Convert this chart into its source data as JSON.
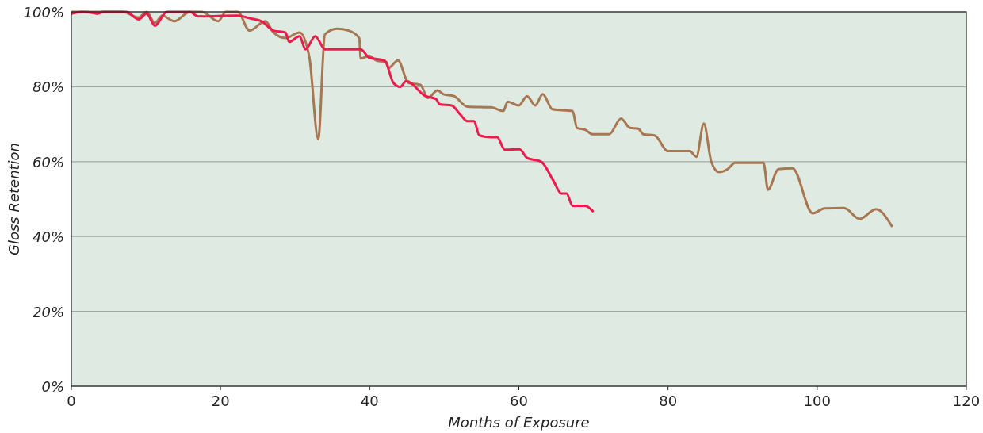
{
  "chart_data": {
    "type": "line",
    "xlabel": "Months of Exposure",
    "ylabel": "Gloss Retention",
    "xlim": [
      0,
      120
    ],
    "xticks": [
      0,
      20,
      40,
      60,
      80,
      100,
      120
    ],
    "ylim": [
      0,
      100
    ],
    "yticks": [
      {
        "value": 0,
        "label": "0%"
      },
      {
        "value": 20,
        "label": "20%"
      },
      {
        "value": 40,
        "label": "40%"
      },
      {
        "value": 60,
        "label": "60%"
      },
      {
        "value": 80,
        "label": "80%"
      },
      {
        "value": 100,
        "label": "100%"
      }
    ],
    "grid": "y",
    "marker": "none",
    "line_style": "solid",
    "series": [
      {
        "color": "#a87650",
        "x": [
          0,
          5.1,
          6.9,
          9,
          10.1,
          11.2,
          12.2,
          13.8,
          15.9,
          17.5,
          19.7,
          20.7,
          22.3,
          23.9,
          26,
          27.1,
          28.7,
          30.6,
          31.9,
          33.1,
          34,
          35.6,
          37.2,
          38.6,
          38.8,
          39.9,
          40.9,
          42.3,
          42.5,
          43.8,
          45.2,
          46.8,
          47.8,
          49.1,
          49.9,
          51.3,
          53.1,
          56.3,
          57.9,
          58.5,
          60,
          61.1,
          62.2,
          63.2,
          64.5,
          67.2,
          67.8,
          68.9,
          69.9,
          72.1,
          73.7,
          74.9,
          76,
          76.7,
          78.2,
          80,
          82.9,
          83.8,
          84.8,
          85.8,
          86.8,
          88,
          89,
          92.8,
          93.4,
          94.8,
          96.7,
          99.4,
          101,
          103.6,
          105.7,
          107.9,
          110
        ],
        "values": [
          100,
          100,
          100,
          98.5,
          100,
          97,
          99,
          97.5,
          100,
          100,
          97.5,
          100,
          100,
          95,
          97.5,
          94.5,
          93,
          94.5,
          88,
          66,
          94,
          95.5,
          95,
          93,
          87.5,
          88.3,
          87,
          86.5,
          85,
          87,
          81,
          80.5,
          77,
          79,
          78,
          77.5,
          74.7,
          74.5,
          73.5,
          76,
          75,
          77.5,
          75,
          78,
          74,
          73.5,
          69,
          68.5,
          67.3,
          67.3,
          71.5,
          69,
          68.8,
          67.3,
          67,
          62.8,
          62.8,
          61.3,
          70.2,
          60,
          57.2,
          58,
          59.7,
          59.7,
          52.5,
          58,
          58.2,
          46.2,
          47.5,
          47.6,
          44.7,
          47.3,
          42.8
        ]
      },
      {
        "color": "#ec1a4d",
        "x": [
          0,
          1.4,
          3,
          3.5,
          4.3,
          7.4,
          9,
          10.1,
          11.2,
          12.8,
          15.9,
          17,
          22.3,
          23.9,
          25.5,
          27.1,
          28.7,
          29.2,
          30.6,
          31.4,
          32.7,
          34,
          38.8,
          39.9,
          42,
          43.2,
          44.1,
          44.9,
          47.5,
          48.9,
          49.4,
          51,
          52.1,
          53.1,
          54,
          54.7,
          56.3,
          57.1,
          58.1,
          60.1,
          61.1,
          63,
          64.6,
          65.7,
          66.4,
          67.2,
          68.9,
          69.9
        ],
        "values": [
          99.5,
          100,
          99.7,
          99.5,
          100,
          100,
          98,
          99.5,
          96.3,
          100,
          100,
          98.8,
          99,
          98.3,
          97.5,
          95,
          94.5,
          92,
          93.5,
          90,
          93.5,
          90,
          90,
          87.8,
          87,
          81,
          80,
          81.5,
          77.5,
          76.7,
          75.3,
          75,
          72.7,
          70.8,
          70.8,
          67,
          66.5,
          66.5,
          63.2,
          63.3,
          61,
          60,
          55,
          51.5,
          51.5,
          48.2,
          48.2,
          46.8
        ]
      }
    ]
  }
}
